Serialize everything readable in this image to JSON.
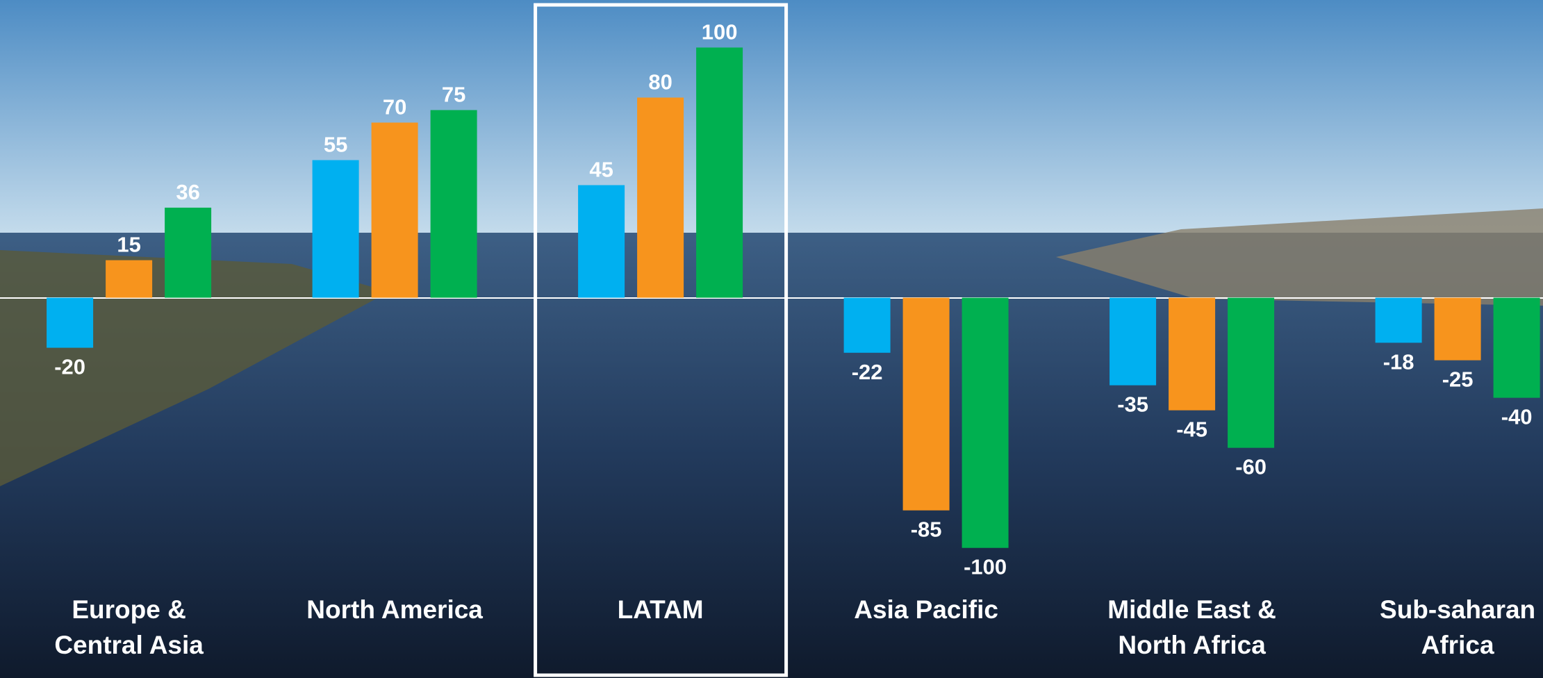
{
  "chart_data": {
    "type": "bar",
    "categories": [
      "Europe & Central Asia",
      "North America",
      "LATAM",
      "Asia Pacific",
      "Middle East & North Africa",
      "Sub-saharan Africa"
    ],
    "series": [
      {
        "color": "#00b0f0",
        "values": [
          -20,
          55,
          45,
          -22,
          -35,
          -18
        ]
      },
      {
        "color": "#f7941d",
        "values": [
          15,
          70,
          80,
          -85,
          -45,
          -25
        ]
      },
      {
        "color": "#00b050",
        "values": [
          36,
          75,
          100,
          -100,
          -60,
          -40
        ]
      }
    ],
    "ylim": [
      -152,
      119
    ],
    "highlight": "LATAM"
  }
}
